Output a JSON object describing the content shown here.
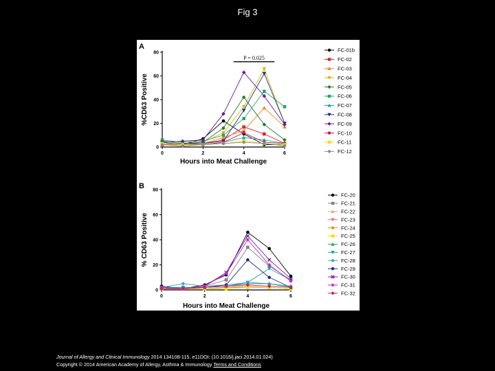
{
  "page": {
    "title": "Fig 3"
  },
  "footer": {
    "citation_journal": "Journal of Allergy and Clinical Immunology",
    "citation_rest": " 2014 134108-115. e11DOI: (10.1016/j.jaci.2014.01.024)",
    "copyright": "Copyright © 2014 American Academy of Allergy, Asthma & Immunology ",
    "terms_link": "Terms and Conditions"
  },
  "chart_data": [
    {
      "panel": "A",
      "type": "line",
      "xlabel": "Hours into Meat Challenge",
      "ylabel": "%CD63 Positive",
      "xlim": [
        0,
        6
      ],
      "ylim": [
        0,
        80
      ],
      "xticks": [
        0,
        2,
        4,
        6
      ],
      "yticks": [
        0,
        20,
        40,
        60,
        80
      ],
      "annotation": {
        "text": "P = 0.025",
        "x_from": 3.5,
        "x_to": 5.5,
        "y": 72
      },
      "x": [
        0,
        1,
        2,
        3,
        4,
        5,
        6
      ],
      "legend_position": "right",
      "series": [
        {
          "name": "FC-01b",
          "color": "#000000",
          "marker": "circle",
          "values": [
            2,
            2,
            7,
            22,
            11,
            2,
            2
          ]
        },
        {
          "name": "FC-02",
          "color": "#e3202a",
          "marker": "square",
          "values": [
            2,
            3,
            3,
            6,
            17,
            11,
            3
          ]
        },
        {
          "name": "FC-03",
          "color": "#f58220",
          "marker": "triangle",
          "values": [
            2,
            2,
            3,
            8,
            14,
            33,
            17
          ]
        },
        {
          "name": "FC-04",
          "color": "#d4b900",
          "marker": "triangle-down",
          "values": [
            3,
            3,
            4,
            12,
            34,
            66,
            20
          ]
        },
        {
          "name": "FC-05",
          "color": "#1f7a2e",
          "marker": "diamond",
          "values": [
            5,
            3,
            4,
            16,
            42,
            19,
            6
          ]
        },
        {
          "name": "FC-06",
          "color": "#26a65b",
          "marker": "square",
          "values": [
            6,
            4,
            5,
            10,
            24,
            47,
            34
          ]
        },
        {
          "name": "FC-07",
          "color": "#1aa3a3",
          "marker": "triangle",
          "values": [
            3,
            2,
            2,
            4,
            8,
            6,
            3
          ]
        },
        {
          "name": "FC-08",
          "color": "#1c2a8c",
          "marker": "triangle-down",
          "values": [
            4,
            2,
            3,
            5,
            31,
            62,
            20
          ]
        },
        {
          "name": "FC-09",
          "color": "#6a1b9a",
          "marker": "diamond",
          "values": [
            4,
            5,
            6,
            28,
            63,
            43,
            19
          ]
        },
        {
          "name": "FC-10",
          "color": "#c2185b",
          "marker": "circle",
          "values": [
            2,
            1,
            2,
            4,
            12,
            4,
            3
          ]
        },
        {
          "name": "FC-11",
          "color": "#f0e000",
          "marker": "square",
          "values": [
            3,
            2,
            2,
            3,
            5,
            3,
            2
          ]
        },
        {
          "name": "FC-12",
          "color": "#888888",
          "marker": "diamond",
          "values": [
            2,
            1,
            2,
            3,
            4,
            3,
            1
          ]
        }
      ]
    },
    {
      "panel": "B",
      "type": "line",
      "xlabel": "Hours into Meat Challenge",
      "ylabel": "% CD63 Positive",
      "xlim": [
        0,
        6
      ],
      "ylim": [
        0,
        80
      ],
      "xticks": [
        0,
        2,
        4,
        6
      ],
      "yticks": [
        0,
        20,
        40,
        60,
        80
      ],
      "x": [
        0,
        1,
        2,
        3,
        4,
        5,
        6
      ],
      "legend_position": "right",
      "series": [
        {
          "name": "FC-20",
          "color": "#000000",
          "marker": "circle",
          "values": [
            3,
            1,
            4,
            12,
            46,
            33,
            11
          ]
        },
        {
          "name": "FC-21",
          "color": "#808080",
          "marker": "square",
          "values": [
            2,
            1,
            3,
            8,
            34,
            19,
            8
          ]
        },
        {
          "name": "FC-22",
          "color": "#c8b88a",
          "marker": "triangle",
          "values": [
            1,
            1,
            1,
            2,
            3,
            2,
            1
          ]
        },
        {
          "name": "FC-23",
          "color": "#e57373",
          "marker": "triangle-down",
          "values": [
            1,
            1,
            1,
            2,
            3,
            2,
            1
          ]
        },
        {
          "name": "FC-24",
          "color": "#f58220",
          "marker": "diamond",
          "values": [
            1,
            1,
            1,
            2,
            2,
            2,
            1
          ]
        },
        {
          "name": "FC-25",
          "color": "#f0e000",
          "marker": "square",
          "values": [
            1,
            1,
            1,
            1,
            2,
            2,
            1
          ]
        },
        {
          "name": "FC-26",
          "color": "#26a65b",
          "marker": "triangle",
          "values": [
            2,
            2,
            2,
            3,
            5,
            5,
            2
          ]
        },
        {
          "name": "FC-27",
          "color": "#1aa3a3",
          "marker": "triangle-down",
          "values": [
            2,
            2,
            2,
            3,
            6,
            17,
            8
          ]
        },
        {
          "name": "FC-28",
          "color": "#3aa0c8",
          "marker": "diamond",
          "values": [
            2,
            5,
            3,
            4,
            6,
            5,
            3
          ]
        },
        {
          "name": "FC-29",
          "color": "#1c2a8c",
          "marker": "circle",
          "values": [
            1,
            1,
            2,
            4,
            24,
            10,
            2
          ]
        },
        {
          "name": "FC-30",
          "color": "#7b1fa2",
          "marker": "cross",
          "values": [
            2,
            1,
            3,
            14,
            43,
            24,
            9
          ]
        },
        {
          "name": "FC-31",
          "color": "#c026d3",
          "marker": "star",
          "values": [
            2,
            1,
            3,
            13,
            40,
            20,
            7
          ]
        },
        {
          "name": "FC-32",
          "color": "#d81b60",
          "marker": "diamond",
          "values": [
            1,
            1,
            2,
            3,
            4,
            3,
            2
          ]
        }
      ]
    }
  ]
}
